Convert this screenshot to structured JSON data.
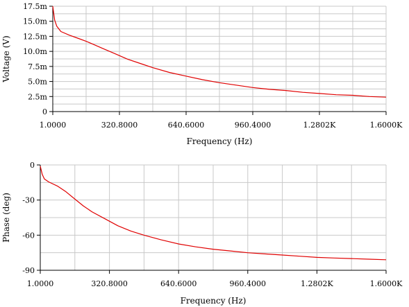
{
  "colors": {
    "trace": "#e00000",
    "grid": "#c8c8c8",
    "axis": "#000000",
    "background": "#ffffff"
  },
  "chart_data": [
    {
      "type": "line",
      "title": "",
      "xlabel": "Frequency (Hz)",
      "ylabel": "Voltage (V)",
      "xlim": [
        1.0,
        1600.0
      ],
      "ylim": [
        0,
        0.0175
      ],
      "x_tick_values": [
        1.0,
        320.8,
        640.6,
        960.4,
        1280.2,
        1600.0
      ],
      "x_tick_labels": [
        "1.0000",
        "320.8000",
        "640.6000",
        "960.4000",
        "1.2802K",
        "1.6000K"
      ],
      "y_tick_values": [
        0,
        0.0025,
        0.005,
        0.0075,
        0.01,
        0.0125,
        0.015,
        0.0175
      ],
      "y_tick_labels": [
        "0",
        "2.5m",
        "5.0m",
        "7.5m",
        "10.0m",
        "12.5m",
        "15.0m",
        "17.5m"
      ],
      "grid": true,
      "series": [
        {
          "color": "#e00000",
          "x": [
            1,
            10,
            20,
            40,
            80,
            120,
            160,
            200,
            240,
            300,
            360,
            420,
            480,
            560,
            640,
            720,
            800,
            880,
            960,
            1040,
            1120,
            1200,
            1280,
            1360,
            1440,
            1520,
            1600
          ],
          "values": [
            0.0175,
            0.0152,
            0.0142,
            0.0133,
            0.0127,
            0.0122,
            0.0117,
            0.0111,
            0.0105,
            0.0096,
            0.0087,
            0.008,
            0.0073,
            0.0065,
            0.0059,
            0.0053,
            0.0048,
            0.0044,
            0.004,
            0.0037,
            0.0035,
            0.0032,
            0.003,
            0.0028,
            0.0027,
            0.0025,
            0.0024
          ]
        }
      ]
    },
    {
      "type": "line",
      "title": "",
      "xlabel": "Frequency (Hz)",
      "ylabel": "Phase (deg)",
      "xlim": [
        1.0,
        1600.0
      ],
      "ylim": [
        -90,
        0
      ],
      "x_tick_values": [
        1.0,
        320.8,
        640.6,
        960.4,
        1280.2,
        1600.0
      ],
      "x_tick_labels": [
        "1.0000",
        "320.8000",
        "640.6000",
        "960.4000",
        "1.2802K",
        "1.6000K"
      ],
      "y_tick_values": [
        0,
        -30,
        -60,
        -90
      ],
      "y_tick_labels": [
        "0",
        "-30",
        "-60",
        "-90"
      ],
      "grid": true,
      "series": [
        {
          "color": "#e00000",
          "x": [
            1,
            10,
            20,
            40,
            80,
            120,
            160,
            200,
            240,
            300,
            360,
            420,
            480,
            560,
            640,
            720,
            800,
            880,
            960,
            1040,
            1120,
            1200,
            1280,
            1360,
            1440,
            1520,
            1600
          ],
          "values": [
            -1,
            -8,
            -12,
            -14.5,
            -18,
            -23,
            -29,
            -35,
            -40,
            -46,
            -52,
            -56.5,
            -60,
            -64,
            -67.5,
            -70,
            -72,
            -73.5,
            -75,
            -76,
            -77,
            -78,
            -79,
            -79.5,
            -80,
            -80.5,
            -81
          ]
        }
      ]
    }
  ]
}
